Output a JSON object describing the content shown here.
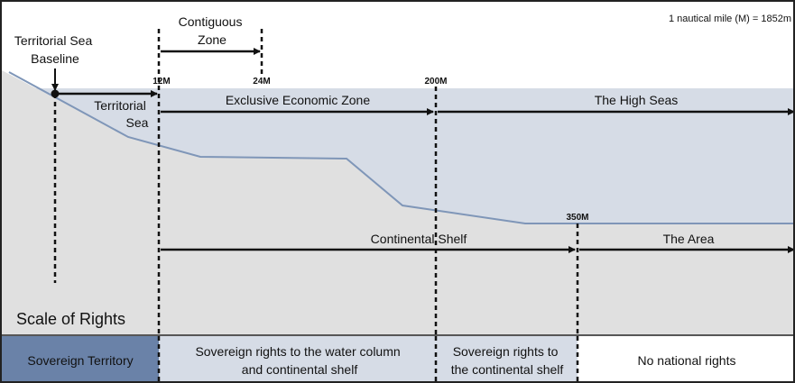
{
  "note": "1 nautical mile (M) = 1852m",
  "baseline_label": [
    "Territorial Sea",
    "Baseline"
  ],
  "contiguous_label": [
    "Contiguous",
    "Zone"
  ],
  "ticks": {
    "m12": "12M",
    "m24": "24M",
    "m200": "200M",
    "m350": "350M"
  },
  "zones": {
    "territorial_sea": [
      "Territorial",
      "Sea"
    ],
    "eez": "Exclusive Economic Zone",
    "high_seas": "The High Seas",
    "continental_shelf": "Continental Shelf",
    "the_area": "The Area"
  },
  "scale_of_rights": "Scale of Rights",
  "rights": {
    "sovereign": "Sovereign Territory",
    "water_column": [
      "Sovereign rights to the water column",
      "and continental shelf"
    ],
    "shelf": [
      "Sovereign rights to",
      "the continental shelf"
    ],
    "none": "No national rights"
  },
  "colors": {
    "sea": "#d6dce6",
    "land": "#e0e0e0",
    "seabed_line": "#7f96b8",
    "sovereign_fill": "#6a82a8",
    "water_column_fill": "#d6dce6",
    "shelf_fill": "#d6dce6",
    "none_fill": "#ffffff"
  }
}
